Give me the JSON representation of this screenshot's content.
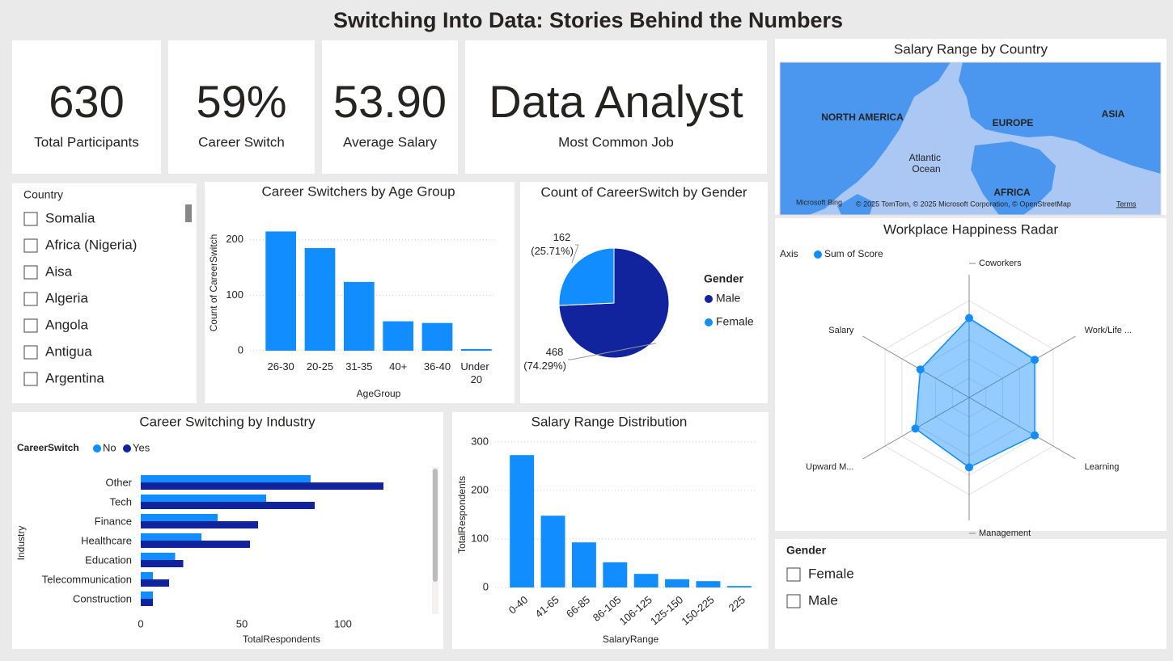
{
  "title": "Switching Into Data: Stories Behind the Numbers",
  "kpis": [
    {
      "value": "630",
      "label": "Total Participants"
    },
    {
      "value": "59%",
      "label": "Career Switch"
    },
    {
      "value": "53.90",
      "label": "Average Salary"
    },
    {
      "value": "Data Analyst",
      "label": "Most Common Job"
    }
  ],
  "country_slicer": {
    "title": "Country",
    "items": [
      "Somalia",
      "Africa (Nigeria)",
      "Aisa",
      "Algeria",
      "Angola",
      "Antigua",
      "Argentina"
    ]
  },
  "gender_slicer": {
    "title": "Gender",
    "items": [
      "Female",
      "Male"
    ]
  },
  "map": {
    "title": "Salary Range by Country",
    "labels": [
      "NORTH AMERICA",
      "EUROPE",
      "ASIA",
      "Atlantic Ocean",
      "AFRICA"
    ],
    "attribution": "Microsoft Bing",
    "copyright": "© 2025 TomTom, © 2025 Microsoft Corporation, © OpenStreetMap",
    "terms": "Terms"
  },
  "chart_data": [
    {
      "type": "bar",
      "title": "Career Switchers by Age Group",
      "x_label": "AgeGroup",
      "y_label": "Count of CareerSwitch",
      "categories": [
        "26-30",
        "20-25",
        "31-35",
        "40+",
        "36-40",
        "Under 20"
      ],
      "values": [
        215,
        185,
        124,
        53,
        50,
        3
      ],
      "color": "#118dff",
      "ylim": [
        0,
        220
      ],
      "yticks": [
        0,
        100,
        200
      ],
      "grid": true
    },
    {
      "type": "pie",
      "title": "Count of CareerSwitch by Gender",
      "legend_title": "Gender",
      "categories": [
        "Male",
        "Female"
      ],
      "values": [
        468,
        162
      ],
      "value_labels": [
        "468 (74.29%)",
        "162 (25.71%)"
      ],
      "colors": [
        "#12239e",
        "#118dff"
      ],
      "legend": "right"
    },
    {
      "type": "hbar",
      "title": "Career Switching by Industry",
      "legend_title": "CareerSwitch",
      "x_label": "TotalRespondents",
      "y_label": "Industry",
      "categories": [
        "Other",
        "Tech",
        "Finance",
        "Healthcare",
        "Education",
        "Telecommunication",
        "Construction"
      ],
      "series": [
        {
          "name": "No",
          "color": "#118dff",
          "values": [
            84,
            62,
            38,
            30,
            17,
            6,
            6
          ]
        },
        {
          "name": "Yes",
          "color": "#12239e",
          "values": [
            120,
            86,
            58,
            54,
            21,
            14,
            6
          ]
        }
      ],
      "xlim": [
        0,
        140
      ],
      "xticks": [
        0,
        50,
        100
      ],
      "grid": false,
      "legend": "top-left"
    },
    {
      "type": "bar",
      "title": "Salary Range Distribution",
      "x_label": "SalaryRange",
      "y_label": "TotalRespondents",
      "categories": [
        "0-40",
        "41-65",
        "66-85",
        "86-105",
        "106-125",
        "125-150",
        "150-225",
        "225"
      ],
      "values": [
        273,
        148,
        93,
        52,
        28,
        17,
        13,
        3
      ],
      "color": "#118dff",
      "ylim": [
        0,
        300
      ],
      "yticks": [
        0,
        100,
        200,
        300
      ],
      "grid": true
    },
    {
      "type": "radar",
      "title": "Workplace Happiness Radar",
      "legend_title": "Axis",
      "categories": [
        "Coworkers",
        "Work/Life ...",
        "Learning",
        "Management",
        "Upward M...",
        "Salary"
      ],
      "series": [
        {
          "name": "Sum of Score",
          "color": "#118dff",
          "values": [
            4.1,
            3.9,
            3.9,
            3.6,
            3.2,
            2.9
          ]
        }
      ],
      "rlim": [
        0,
        5
      ]
    }
  ]
}
